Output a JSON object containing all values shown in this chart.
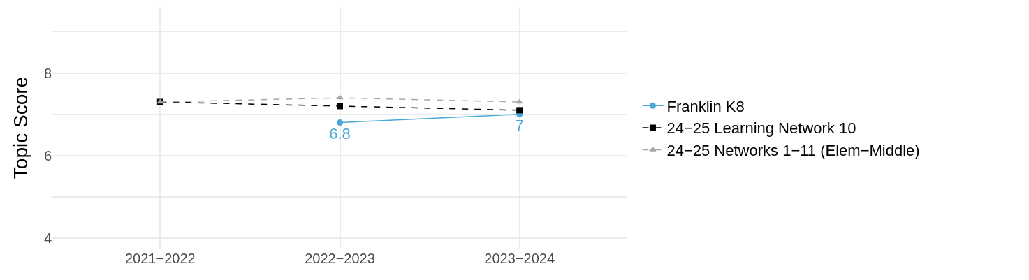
{
  "chart_data": {
    "type": "line",
    "ylabel": "Topic Score",
    "categories": [
      "2021−2022",
      "2022−2023",
      "2023−2024"
    ],
    "series": [
      {
        "name": "Franklin K8",
        "color": "#4aa8d8",
        "values": [
          null,
          6.8,
          7.0
        ],
        "marker": "circle",
        "line_style": "solid",
        "value_labels": [
          null,
          "6.8",
          "7"
        ]
      },
      {
        "name": "24−25 Learning Network 10",
        "color": "#000000",
        "values": [
          7.3,
          7.2,
          7.1
        ],
        "marker": "square",
        "line_style": "dashed"
      },
      {
        "name": "24−25 Networks 1−11 (Elem−Middle)",
        "color": "#a6a6a6",
        "values": [
          7.3,
          7.4,
          7.3
        ],
        "marker": "triangle",
        "line_style": "dashed"
      }
    ],
    "ylim": [
      3.75,
      9.6
    ],
    "yticks": [
      4,
      {
        "value": 5,
        "label": null
      },
      6,
      {
        "value": 7,
        "label": null
      },
      8,
      {
        "value": 9,
        "label": null
      }
    ],
    "grid": true,
    "legend": "right"
  }
}
